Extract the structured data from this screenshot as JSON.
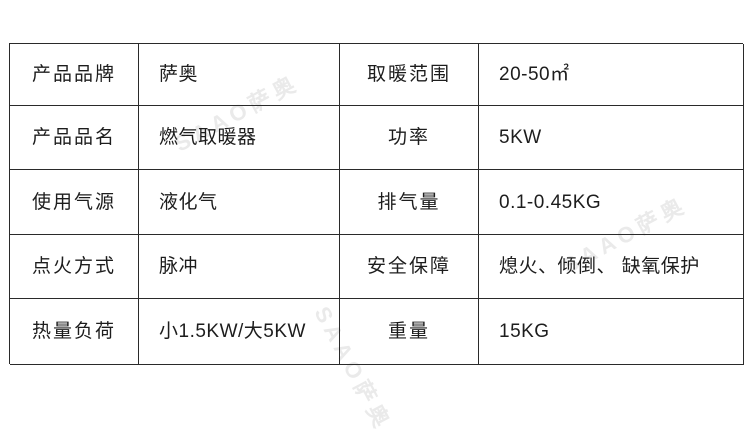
{
  "table": {
    "border_color": "#2a2a2a",
    "text_color": "#1d1d1d",
    "rows": [
      [
        "产品品牌",
        "萨奥",
        "取暖范围",
        "20-50㎡"
      ],
      [
        "产品品名",
        "燃气取暖器",
        "功率",
        "5KW"
      ],
      [
        "使用气源",
        "液化气",
        "排气量",
        "0.1-0.45KG"
      ],
      [
        "点火方式",
        "脉冲",
        "安全保障",
        "熄火、倾倒、 缺氧保护"
      ],
      [
        "热量负荷",
        "小1.5KW/大5KW",
        "重量",
        "15KG"
      ]
    ]
  },
  "watermark": {
    "text": "SAAO萨奥",
    "color": "#c9c9c9"
  }
}
